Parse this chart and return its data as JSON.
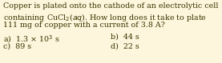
{
  "background_color": "#fdf5dc",
  "text_color": "#3a3500",
  "line1": "Copper is plated onto the cathode of an electrolytic cell",
  "line2": "containing CuCl$_2$(\textit{aq}). How long does it take to plate",
  "line3": "111 mg of copper with a current of 3.8 A?",
  "ans_a": "a)  1.3 × 10$^3$ s",
  "ans_b": "b)  44 s",
  "ans_c": "c)  89 s",
  "ans_d": "d)  22 s",
  "fontsize": 6.8,
  "fontfamily": "DejaVu Serif",
  "fig_w": 2.77,
  "fig_h": 0.79,
  "dpi": 100
}
